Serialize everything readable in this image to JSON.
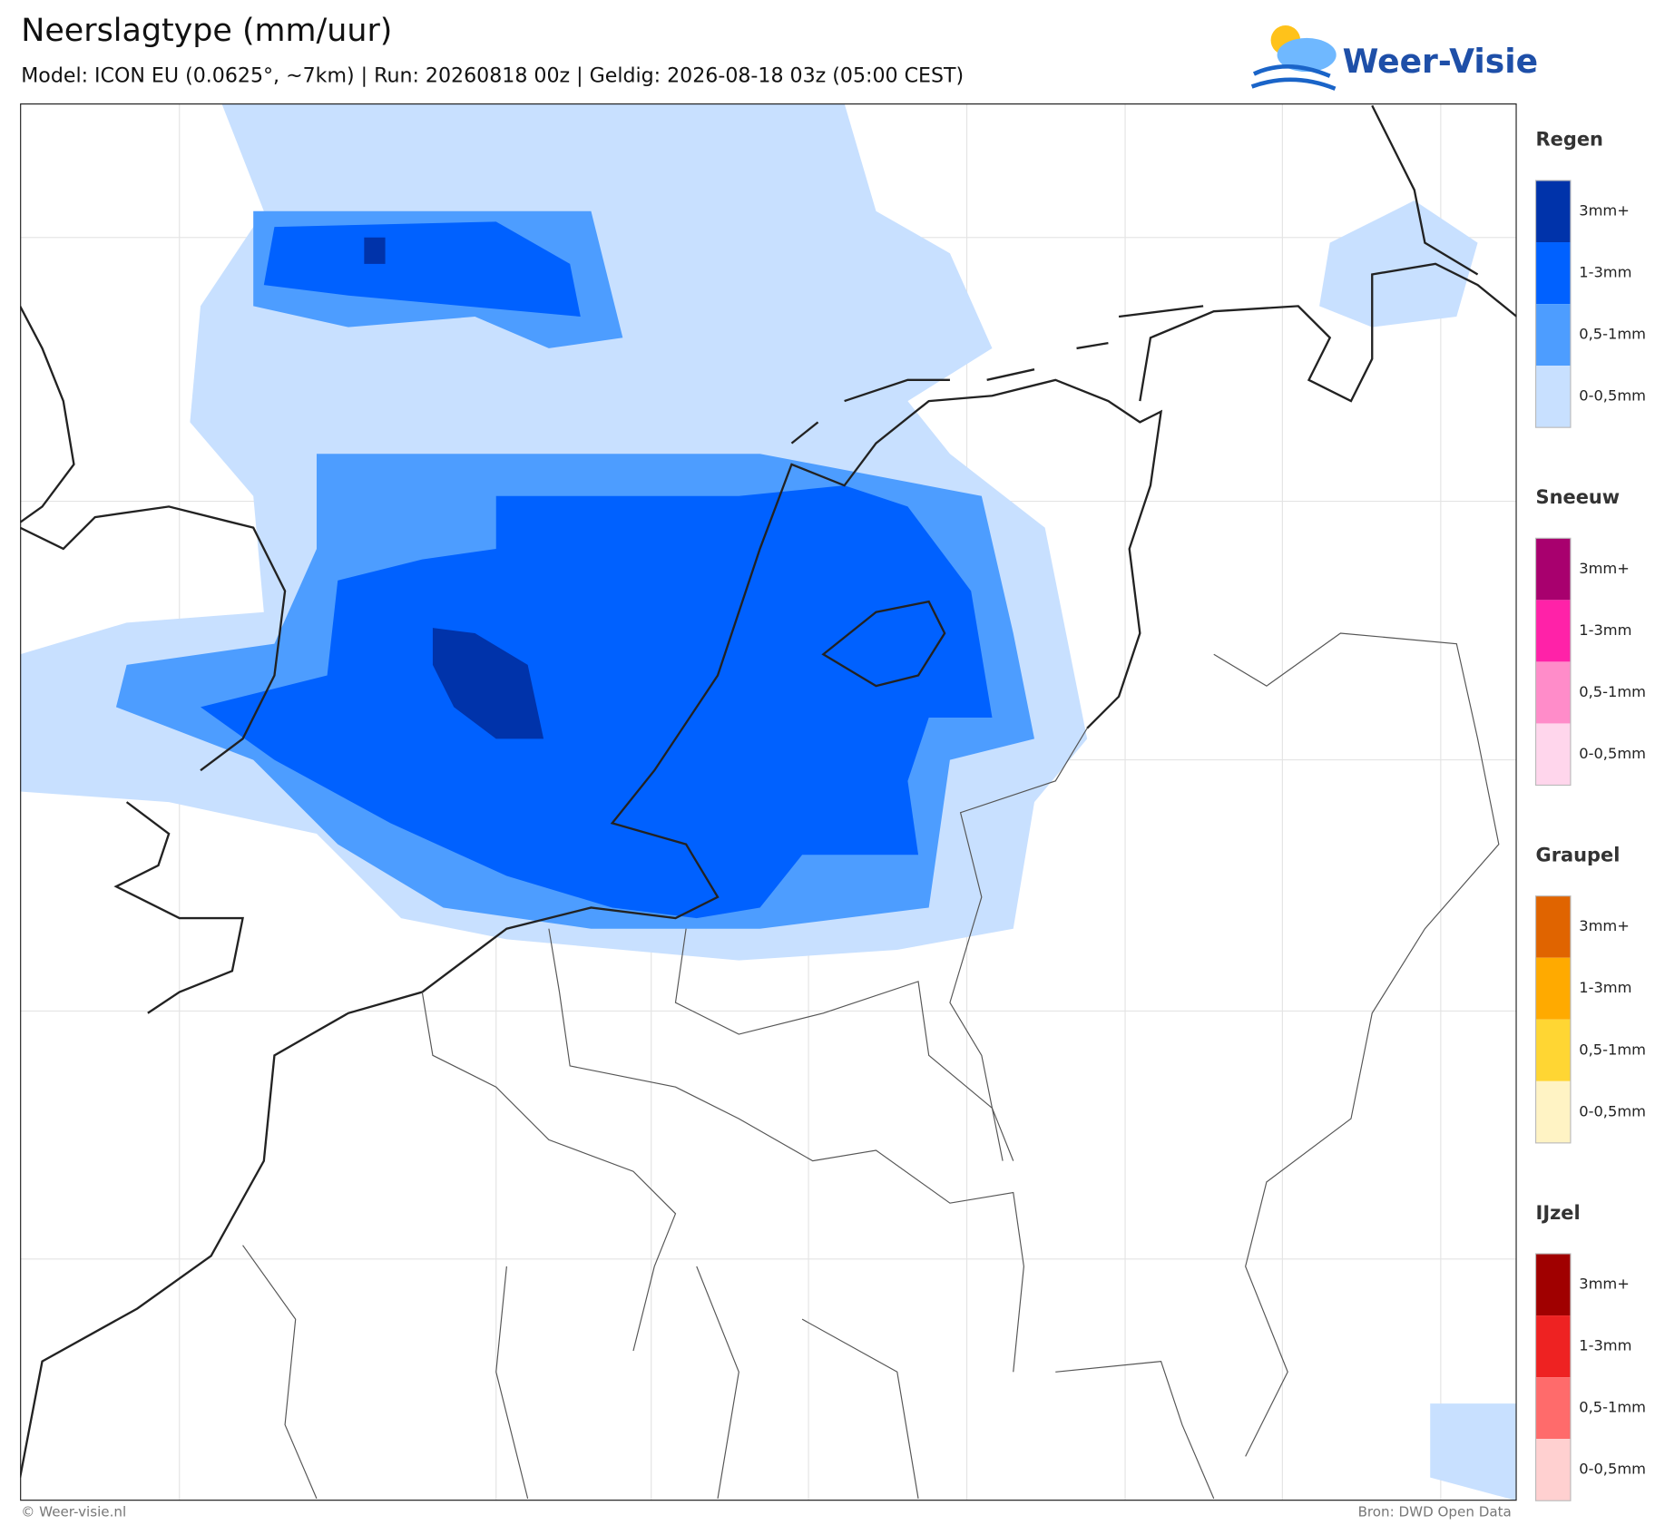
{
  "header": {
    "title": "Neerslagtype (mm/uur)",
    "subtitle": "Model: ICON EU (0.0625°, ~7km)  |  Run: 20260818 00z  |  Geldig: 2026-08-18 03z (05:00 CEST)"
  },
  "logo": {
    "text": "Weer-Visie"
  },
  "legend": [
    {
      "name": "Regen",
      "items": [
        {
          "label": "3mm+",
          "color": "#0033aa"
        },
        {
          "label": "1-3mm",
          "color": "#0061ff"
        },
        {
          "label": "0,5-1mm",
          "color": "#4d9dff"
        },
        {
          "label": "0-0,5mm",
          "color": "#c8e0ff"
        }
      ]
    },
    {
      "name": "Sneeuw",
      "items": [
        {
          "label": "3mm+",
          "color": "#a8006e"
        },
        {
          "label": "1-3mm",
          "color": "#ff22a8"
        },
        {
          "label": "0,5-1mm",
          "color": "#ff8cc9"
        },
        {
          "label": "0-0,5mm",
          "color": "#ffd6ec"
        }
      ]
    },
    {
      "name": "Graupel",
      "items": [
        {
          "label": "3mm+",
          "color": "#e06400"
        },
        {
          "label": "1-3mm",
          "color": "#ffaa00"
        },
        {
          "label": "0,5-1mm",
          "color": "#ffd633"
        },
        {
          "label": "0-0,5mm",
          "color": "#fff3c4"
        }
      ]
    },
    {
      "name": "IJzel",
      "items": [
        {
          "label": "3mm+",
          "color": "#a00000"
        },
        {
          "label": "1-3mm",
          "color": "#ee2222"
        },
        {
          "label": "0,5-1mm",
          "color": "#ff6b6b"
        },
        {
          "label": "0-0,5mm",
          "color": "#ffd0d0"
        }
      ]
    }
  ],
  "footer": {
    "left": "© Weer-visie.nl",
    "right": "Bron: DWD Open Data"
  }
}
